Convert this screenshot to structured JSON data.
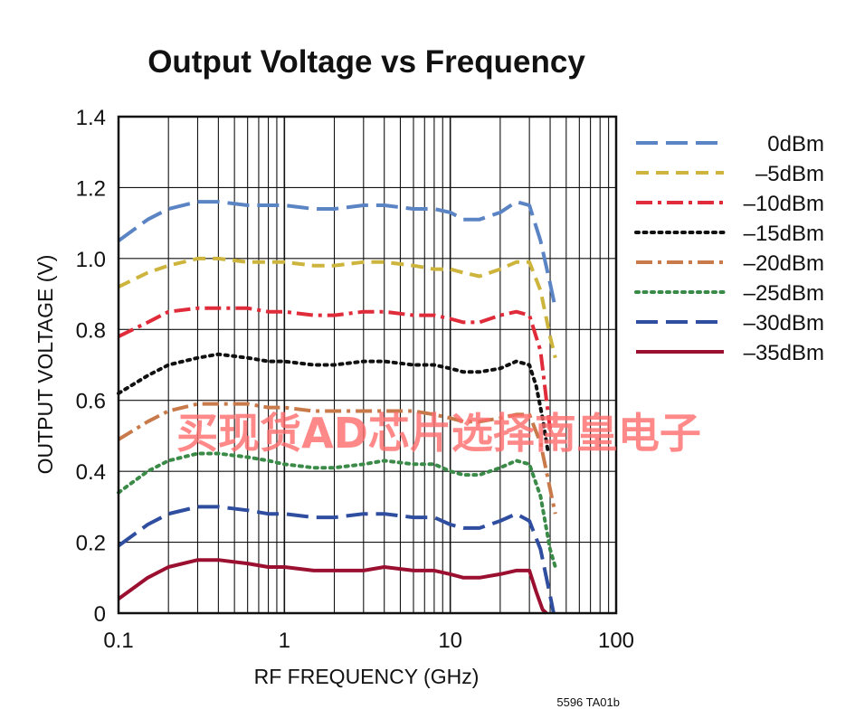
{
  "chart_data": {
    "type": "line",
    "title": "Output Voltage vs Frequency",
    "xlabel": "RF FREQUENCY (GHz)",
    "ylabel": "OUTPUT VOLTAGE (V)",
    "xscale": "log",
    "xlim": [
      0.1,
      100
    ],
    "ylim": [
      0,
      1.4
    ],
    "x_ticks": [
      "0.1",
      "1",
      "10",
      "100"
    ],
    "y_ticks": [
      "0",
      "0.2",
      "0.4",
      "0.6",
      "0.8",
      "1.0",
      "1.2",
      "1.4"
    ],
    "grid": true,
    "legend_position": "right",
    "series": [
      {
        "name": "0dBm",
        "color": "#5b84c4",
        "dash": "long-dash",
        "x": [
          0.1,
          0.15,
          0.2,
          0.3,
          0.4,
          0.6,
          0.8,
          1,
          1.5,
          2,
          3,
          4,
          6,
          8,
          10,
          12,
          15,
          20,
          25,
          30,
          35,
          40,
          43
        ],
        "y": [
          1.05,
          1.11,
          1.14,
          1.16,
          1.16,
          1.15,
          1.15,
          1.15,
          1.14,
          1.14,
          1.15,
          1.15,
          1.14,
          1.14,
          1.13,
          1.11,
          1.11,
          1.13,
          1.16,
          1.15,
          1.05,
          0.93,
          0.86
        ]
      },
      {
        "name": "–5dBm",
        "color": "#cdb53d",
        "dash": "dash",
        "x": [
          0.1,
          0.15,
          0.2,
          0.3,
          0.4,
          0.6,
          0.8,
          1,
          1.5,
          2,
          3,
          4,
          6,
          8,
          10,
          12,
          15,
          20,
          25,
          30,
          35,
          40,
          43
        ],
        "y": [
          0.92,
          0.96,
          0.98,
          1.0,
          1.0,
          0.99,
          0.99,
          0.99,
          0.98,
          0.98,
          0.99,
          0.99,
          0.98,
          0.97,
          0.97,
          0.96,
          0.95,
          0.97,
          0.99,
          0.99,
          0.91,
          0.78,
          0.72
        ]
      },
      {
        "name": "–10dBm",
        "color": "#e02b3a",
        "dash": "dash-dot",
        "x": [
          0.1,
          0.15,
          0.2,
          0.3,
          0.4,
          0.6,
          0.8,
          1,
          1.5,
          2,
          3,
          4,
          6,
          8,
          10,
          12,
          15,
          20,
          25,
          30,
          35,
          38,
          40
        ],
        "y": [
          0.78,
          0.82,
          0.85,
          0.86,
          0.86,
          0.86,
          0.85,
          0.85,
          0.84,
          0.84,
          0.85,
          0.85,
          0.84,
          0.84,
          0.83,
          0.82,
          0.82,
          0.84,
          0.85,
          0.84,
          0.74,
          0.6,
          0.52
        ]
      },
      {
        "name": "–15dBm",
        "color": "#111111",
        "dash": "dot",
        "x": [
          0.1,
          0.15,
          0.2,
          0.3,
          0.4,
          0.6,
          0.8,
          1,
          1.5,
          2,
          3,
          4,
          6,
          8,
          10,
          12,
          15,
          20,
          25,
          30,
          33,
          36,
          39
        ],
        "y": [
          0.62,
          0.67,
          0.7,
          0.72,
          0.73,
          0.72,
          0.71,
          0.71,
          0.7,
          0.7,
          0.71,
          0.71,
          0.7,
          0.7,
          0.69,
          0.68,
          0.68,
          0.69,
          0.71,
          0.7,
          0.64,
          0.55,
          0.45
        ]
      },
      {
        "name": "–20dBm",
        "color": "#c87a4a",
        "dash": "dash-dot",
        "x": [
          0.1,
          0.15,
          0.2,
          0.3,
          0.4,
          0.6,
          0.8,
          1,
          1.5,
          2,
          3,
          4,
          6,
          8,
          10,
          12,
          15,
          20,
          25,
          30,
          35,
          40,
          43
        ],
        "y": [
          0.49,
          0.54,
          0.57,
          0.59,
          0.59,
          0.59,
          0.58,
          0.58,
          0.57,
          0.57,
          0.57,
          0.57,
          0.57,
          0.56,
          0.55,
          0.54,
          0.54,
          0.55,
          0.56,
          0.56,
          0.48,
          0.35,
          0.28
        ]
      },
      {
        "name": "–25dBm",
        "color": "#3a8a48",
        "dash": "dot",
        "x": [
          0.1,
          0.15,
          0.2,
          0.3,
          0.4,
          0.6,
          0.8,
          1,
          1.5,
          2,
          3,
          4,
          6,
          8,
          10,
          12,
          15,
          20,
          25,
          30,
          35,
          40,
          43
        ],
        "y": [
          0.34,
          0.4,
          0.43,
          0.45,
          0.45,
          0.44,
          0.43,
          0.42,
          0.41,
          0.41,
          0.42,
          0.43,
          0.42,
          0.42,
          0.4,
          0.39,
          0.39,
          0.41,
          0.43,
          0.42,
          0.33,
          0.18,
          0.13
        ]
      },
      {
        "name": "–30dBm",
        "color": "#2f4ea0",
        "dash": "long-dash",
        "x": [
          0.1,
          0.15,
          0.2,
          0.3,
          0.4,
          0.6,
          0.8,
          1,
          1.5,
          2,
          3,
          4,
          6,
          8,
          10,
          12,
          15,
          20,
          25,
          30,
          35,
          40,
          42
        ],
        "y": [
          0.19,
          0.25,
          0.28,
          0.3,
          0.3,
          0.29,
          0.28,
          0.28,
          0.27,
          0.27,
          0.28,
          0.28,
          0.27,
          0.27,
          0.25,
          0.24,
          0.24,
          0.26,
          0.28,
          0.26,
          0.18,
          0.05,
          0.0
        ]
      },
      {
        "name": "–35dBm",
        "color": "#9b1030",
        "dash": "solid",
        "x": [
          0.1,
          0.15,
          0.2,
          0.3,
          0.4,
          0.6,
          0.8,
          1,
          1.5,
          2,
          3,
          4,
          6,
          8,
          10,
          12,
          15,
          20,
          25,
          30,
          33,
          36,
          38
        ],
        "y": [
          0.04,
          0.1,
          0.13,
          0.15,
          0.15,
          0.14,
          0.13,
          0.13,
          0.12,
          0.12,
          0.12,
          0.13,
          0.12,
          0.12,
          0.11,
          0.1,
          0.1,
          0.11,
          0.12,
          0.12,
          0.06,
          0.01,
          0.0
        ]
      }
    ]
  },
  "watermark_text": "买现货AD芯片选择南皇电子",
  "figure_id": "5596 TA01b"
}
